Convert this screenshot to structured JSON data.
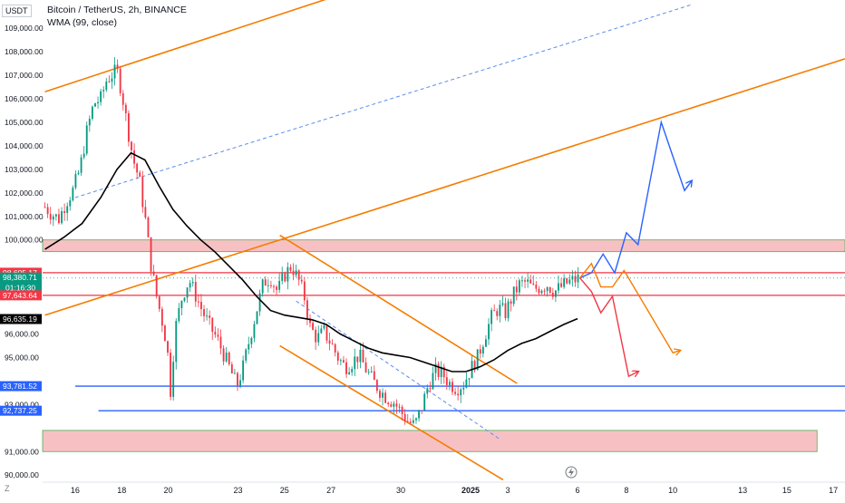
{
  "legend": {
    "symbol": "Bitcoin / TetherUS, 2h, BINANCE",
    "indicator": "WMA (99, close)"
  },
  "currency_button": "USDT",
  "timezone_button": "Z",
  "chart_data": {
    "type": "candlestick",
    "title": "Bitcoin / TetherUS, 2h, BINANCE",
    "y_axis": {
      "position": "left",
      "ylim": [
        89700,
        110200
      ],
      "ticks": [
        {
          "value": 109000,
          "label": "109,000.00"
        },
        {
          "value": 108000,
          "label": "108,000.00"
        },
        {
          "value": 107000,
          "label": "107,000.00"
        },
        {
          "value": 106000,
          "label": "106,000.00"
        },
        {
          "value": 105000,
          "label": "105,000.00"
        },
        {
          "value": 104000,
          "label": "104,000.00"
        },
        {
          "value": 103000,
          "label": "103,000.00"
        },
        {
          "value": 102000,
          "label": "102,000.00"
        },
        {
          "value": 101000,
          "label": "101,000.00"
        },
        {
          "value": 100000,
          "label": "100,000.00"
        },
        {
          "value": 96000,
          "label": "96,000.00"
        },
        {
          "value": 95000,
          "label": "95,000.00"
        },
        {
          "value": 93000,
          "label": "93,000.00"
        },
        {
          "value": 91000,
          "label": "91,000.00"
        },
        {
          "value": 90000,
          "label": "90,000.00"
        }
      ]
    },
    "x_axis": {
      "xlim": [
        14.6,
        49.1
      ],
      "ticks": [
        {
          "value": 16,
          "label": "16"
        },
        {
          "value": 18,
          "label": "18"
        },
        {
          "value": 20,
          "label": "20"
        },
        {
          "value": 23,
          "label": "23"
        },
        {
          "value": 25,
          "label": "25"
        },
        {
          "value": 27,
          "label": "27"
        },
        {
          "value": 30,
          "label": "30"
        },
        {
          "value": 32,
          "label": ""
        },
        {
          "value": 33,
          "label": "2025"
        },
        {
          "value": 34.6,
          "label": "3"
        },
        {
          "value": 37.6,
          "label": "6"
        },
        {
          "value": 39.7,
          "label": "8"
        },
        {
          "value": 41.7,
          "label": "10"
        },
        {
          "value": 44.7,
          "label": "13"
        },
        {
          "value": 46.6,
          "label": "15"
        },
        {
          "value": 48.6,
          "label": "17"
        }
      ]
    },
    "price_labels": [
      {
        "label": "98,605.17",
        "value": 98605.17,
        "color": "#f23645"
      },
      {
        "label": "98,380.71",
        "sublabel": "01:16:30",
        "value": 98380.71,
        "color": "#089981"
      },
      {
        "label": "97,643.64",
        "value": 97643.64,
        "color": "#f23645"
      },
      {
        "label": "96,635.19",
        "value": 96635.19,
        "color": "#000000"
      },
      {
        "label": "93,781.52",
        "value": 93781.52,
        "color": "#2962ff"
      },
      {
        "label": "92,737.25",
        "value": 92737.25,
        "color": "#2962ff"
      }
    ],
    "price_path": [
      [
        14.7,
        101400
      ],
      [
        15.0,
        101100
      ],
      [
        15.3,
        100900
      ],
      [
        15.6,
        101600
      ],
      [
        15.9,
        102100
      ],
      [
        16.2,
        103000
      ],
      [
        16.5,
        104600
      ],
      [
        16.8,
        105800
      ],
      [
        17.1,
        106000
      ],
      [
        17.35,
        106800
      ],
      [
        17.55,
        107000
      ],
      [
        17.8,
        107200
      ],
      [
        18.0,
        106300
      ],
      [
        18.25,
        104800
      ],
      [
        18.5,
        103400
      ],
      [
        18.75,
        102600
      ],
      [
        19.0,
        101000
      ],
      [
        19.25,
        99000
      ],
      [
        19.5,
        97600
      ],
      [
        19.75,
        96500
      ],
      [
        19.95,
        95500
      ],
      [
        20.1,
        93600
      ],
      [
        20.3,
        96200
      ],
      [
        20.6,
        97600
      ],
      [
        20.9,
        98300
      ],
      [
        21.2,
        97600
      ],
      [
        21.5,
        96900
      ],
      [
        21.8,
        96300
      ],
      [
        22.1,
        95800
      ],
      [
        22.4,
        95100
      ],
      [
        22.7,
        94400
      ],
      [
        22.95,
        93800
      ],
      [
        23.2,
        94500
      ],
      [
        23.5,
        95800
      ],
      [
        23.8,
        97000
      ],
      [
        24.1,
        98200
      ],
      [
        24.4,
        98400
      ],
      [
        24.7,
        97800
      ],
      [
        25.0,
        98500
      ],
      [
        25.3,
        98900
      ],
      [
        25.6,
        98300
      ],
      [
        25.85,
        97600
      ],
      [
        26.1,
        96300
      ],
      [
        26.4,
        95800
      ],
      [
        26.7,
        96100
      ],
      [
        27.0,
        95600
      ],
      [
        27.3,
        95000
      ],
      [
        27.6,
        94600
      ],
      [
        27.9,
        94800
      ],
      [
        28.2,
        95100
      ],
      [
        28.5,
        94500
      ],
      [
        28.8,
        94000
      ],
      [
        29.1,
        93600
      ],
      [
        29.4,
        93300
      ],
      [
        29.7,
        93100
      ],
      [
        30.0,
        92700
      ],
      [
        30.3,
        92300
      ],
      [
        30.6,
        92100
      ],
      [
        30.9,
        92900
      ],
      [
        31.2,
        93900
      ],
      [
        31.5,
        94400
      ],
      [
        31.8,
        94300
      ],
      [
        32.1,
        93900
      ],
      [
        32.4,
        93700
      ],
      [
        32.7,
        93900
      ],
      [
        33.0,
        94500
      ],
      [
        33.3,
        95000
      ],
      [
        33.6,
        95900
      ],
      [
        33.9,
        96700
      ],
      [
        34.2,
        97100
      ],
      [
        34.5,
        96900
      ],
      [
        34.8,
        97600
      ],
      [
        35.1,
        98100
      ],
      [
        35.4,
        98200
      ],
      [
        35.7,
        97900
      ],
      [
        36.0,
        98000
      ],
      [
        36.3,
        98100
      ],
      [
        36.6,
        97800
      ],
      [
        36.9,
        98000
      ],
      [
        37.2,
        98200
      ],
      [
        37.5,
        98300
      ],
      [
        37.7,
        98380
      ]
    ],
    "wma_99": [
      [
        14.7,
        99600
      ],
      [
        15.5,
        100100
      ],
      [
        16.3,
        100700
      ],
      [
        17.1,
        101800
      ],
      [
        17.8,
        103000
      ],
      [
        18.4,
        103700
      ],
      [
        19.0,
        103400
      ],
      [
        19.6,
        102300
      ],
      [
        20.2,
        101300
      ],
      [
        20.8,
        100600
      ],
      [
        21.4,
        100000
      ],
      [
        22.0,
        99500
      ],
      [
        22.6,
        98900
      ],
      [
        23.2,
        98300
      ],
      [
        23.8,
        97600
      ],
      [
        24.4,
        97000
      ],
      [
        25.0,
        96800
      ],
      [
        25.6,
        96700
      ],
      [
        26.2,
        96600
      ],
      [
        26.8,
        96400
      ],
      [
        27.4,
        96000
      ],
      [
        28.0,
        95700
      ],
      [
        28.6,
        95400
      ],
      [
        29.2,
        95200
      ],
      [
        29.8,
        95100
      ],
      [
        30.4,
        95000
      ],
      [
        31.0,
        94800
      ],
      [
        31.6,
        94600
      ],
      [
        32.2,
        94400
      ],
      [
        32.8,
        94400
      ],
      [
        33.4,
        94600
      ],
      [
        34.0,
        94900
      ],
      [
        34.6,
        95300
      ],
      [
        35.2,
        95600
      ],
      [
        35.8,
        95800
      ],
      [
        36.4,
        96100
      ],
      [
        37.0,
        96400
      ],
      [
        37.6,
        96650
      ]
    ],
    "zones": [
      {
        "name": "resistance-zone",
        "y1": 99500,
        "y2": 100000,
        "x1": 14.6,
        "x2": 49.1
      },
      {
        "name": "support-zone",
        "y1": 91000,
        "y2": 91900,
        "x1": 14.6,
        "x2": 47.9
      }
    ],
    "horizontal_lines": [
      {
        "value": 98605.17,
        "color": "#f23645",
        "x1": 14.6,
        "x2": 49.1
      },
      {
        "value": 97643.64,
        "color": "#f23645",
        "x1": 14.6,
        "x2": 49.1
      },
      {
        "value": 93781.52,
        "color": "#2962ff",
        "x1": 16.0,
        "x2": 49.1
      },
      {
        "value": 92737.25,
        "color": "#2962ff",
        "x1": 17.0,
        "x2": 49.1
      }
    ],
    "trend_lines": [
      {
        "name": "upper-channel-top",
        "color": "#f57c00",
        "x1": 14.7,
        "y1": 106300,
        "x2": 27.0,
        "y2": 110300,
        "dashed": false
      },
      {
        "name": "upper-channel-mid",
        "color": "#5b8def",
        "x1": 16.0,
        "y1": 101800,
        "x2": 42.5,
        "y2": 110000,
        "dashed": true
      },
      {
        "name": "upper-channel-bottom",
        "color": "#f57c00",
        "x1": 14.7,
        "y1": 96800,
        "x2": 49.1,
        "y2": 107700,
        "dashed": false
      },
      {
        "name": "down-channel-top",
        "color": "#f57c00",
        "x1": 24.8,
        "y1": 100200,
        "x2": 35.0,
        "y2": 93900,
        "dashed": false
      },
      {
        "name": "down-channel-bottom",
        "color": "#f57c00",
        "x1": 24.8,
        "y1": 95500,
        "x2": 34.4,
        "y2": 89800,
        "dashed": false
      },
      {
        "name": "down-channel-mid",
        "color": "#5b8def",
        "x1": 25.5,
        "y1": 97400,
        "x2": 34.3,
        "y2": 91500,
        "dashed": true
      }
    ],
    "projections": [
      {
        "name": "blue-projection",
        "color": "#2962ff",
        "points": [
          [
            37.7,
            98380
          ],
          [
            38.2,
            98600
          ],
          [
            38.7,
            99400
          ],
          [
            39.2,
            98600
          ],
          [
            39.7,
            100300
          ],
          [
            40.2,
            99800
          ],
          [
            41.2,
            105000
          ],
          [
            42.2,
            102100
          ],
          [
            42.5,
            102500
          ]
        ],
        "arrow": true
      },
      {
        "name": "orange-projection",
        "color": "#f57c00",
        "points": [
          [
            37.7,
            98380
          ],
          [
            38.2,
            99000
          ],
          [
            38.6,
            98000
          ],
          [
            39.1,
            98000
          ],
          [
            39.6,
            98700
          ],
          [
            41.7,
            95200
          ],
          [
            42.0,
            95300
          ]
        ],
        "arrow": true
      },
      {
        "name": "red-projection",
        "color": "#f23645",
        "points": [
          [
            37.7,
            98380
          ],
          [
            38.2,
            97800
          ],
          [
            38.6,
            96900
          ],
          [
            39.1,
            97600
          ],
          [
            39.8,
            94200
          ],
          [
            40.2,
            94400
          ]
        ],
        "arrow": true
      }
    ],
    "grid": false
  }
}
